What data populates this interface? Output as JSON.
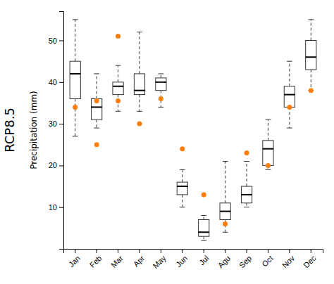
{
  "chart_data": {
    "type": "box",
    "title": "RCP8.5",
    "y_label": "Precipitation (mm)",
    "categories": [
      "Jan",
      "Feb",
      "Mar",
      "Apr",
      "May",
      "Jun",
      "Jul",
      "Agu",
      "Sep",
      "Oct",
      "Nov",
      "Dec"
    ],
    "boxes": [
      {
        "whislo": 27,
        "q1": 36,
        "med": 42,
        "q3": 45,
        "whishi": 55,
        "fliers": [
          34
        ]
      },
      {
        "whislo": 29,
        "q1": 31,
        "med": 34,
        "q3": 36,
        "whishi": 42,
        "fliers": [
          25,
          35.5
        ]
      },
      {
        "whislo": 33,
        "q1": 37,
        "med": 39,
        "q3": 40,
        "whishi": 44,
        "fliers": [
          51,
          35.5
        ]
      },
      {
        "whislo": 33,
        "q1": 37,
        "med": 38,
        "q3": 42,
        "whishi": 52,
        "fliers": [
          30
        ]
      },
      {
        "whislo": 34,
        "q1": 38,
        "med": 40,
        "q3": 41,
        "whishi": 42,
        "fliers": [
          36
        ]
      },
      {
        "whislo": 10,
        "q1": 13,
        "med": 15,
        "q3": 16,
        "whishi": 19,
        "fliers": [
          24
        ]
      },
      {
        "whislo": 2,
        "q1": 3,
        "med": 4,
        "q3": 7,
        "whishi": 8,
        "fliers": [
          13
        ]
      },
      {
        "whislo": 4,
        "q1": 7,
        "med": 9,
        "q3": 11,
        "whishi": 21,
        "fliers": [
          6
        ]
      },
      {
        "whislo": 10,
        "q1": 11,
        "med": 13,
        "q3": 15,
        "whishi": 21,
        "fliers": [
          23
        ]
      },
      {
        "whislo": 19,
        "q1": 20,
        "med": 24,
        "q3": 26,
        "whishi": 31,
        "fliers": [
          20
        ]
      },
      {
        "whislo": 29,
        "q1": 34,
        "med": 37,
        "q3": 39,
        "whishi": 45,
        "fliers": [
          34
        ]
      },
      {
        "whislo": 38,
        "q1": 43,
        "med": 46,
        "q3": 50,
        "whishi": 55,
        "fliers": [
          38
        ]
      }
    ],
    "ylim": [
      0,
      57
    ],
    "yticks": [
      10,
      20,
      30,
      40,
      50
    ],
    "grid": false
  }
}
